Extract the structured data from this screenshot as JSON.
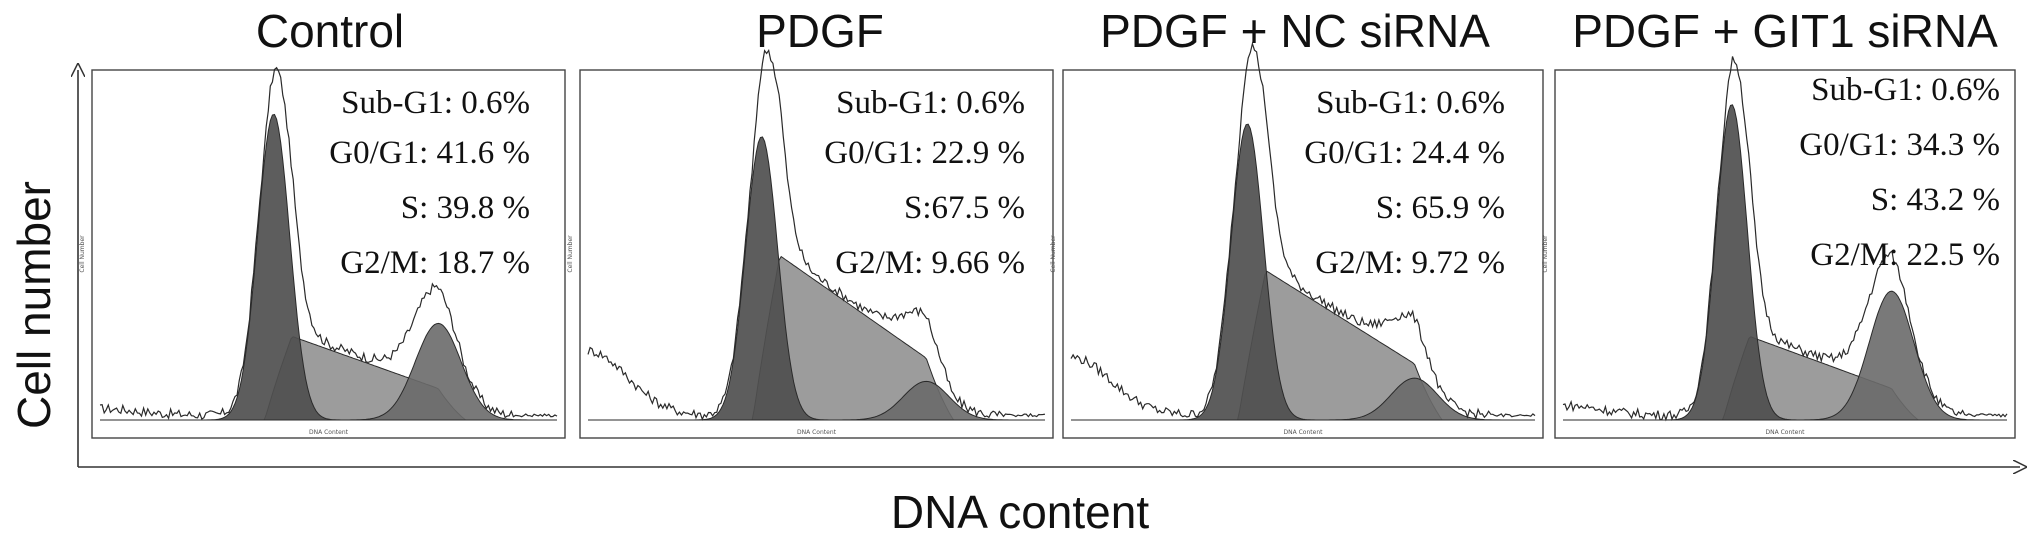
{
  "chart_data": {
    "type": "area",
    "xlabel": "DNA content",
    "ylabel": "Cell number",
    "inner_xlabel": "DNA Content",
    "inner_ylabel": "Cell Number",
    "colors": {
      "g1_fill": "#4f4f4f",
      "s_fill": "#9c9c9c",
      "g2_fill": "#6a6a6a",
      "outline": "#2a2a2a",
      "frame": "#444444"
    },
    "panels": [
      {
        "title": "Control",
        "stats": [
          {
            "label": "Sub-G1:",
            "value": "0.6%"
          },
          {
            "label": "G0/G1:",
            "value": "41.6 %"
          },
          {
            "label": "S:",
            "value": "39.8 %"
          },
          {
            "label": "G2/M:",
            "value": "18.7 %"
          }
        ],
        "g1_peak": 0.95,
        "s_height": 0.28,
        "g2_peak": 0.3,
        "sub_g1": 0.02
      },
      {
        "title": "PDGF",
        "stats": [
          {
            "label": "Sub-G1:",
            "value": "0.6%"
          },
          {
            "label": "G0/G1:",
            "value": "22.9 %"
          },
          {
            "label": "S:67.5 %",
            "value": ""
          },
          {
            "label": "G2/M:",
            "value": "9.66 %"
          }
        ],
        "g1_peak": 0.88,
        "s_height": 0.55,
        "g2_peak": 0.12,
        "sub_g1": 0.2
      },
      {
        "title": "PDGF + NC siRNA",
        "stats": [
          {
            "label": "Sub-G1:",
            "value": "0.6%"
          },
          {
            "label": "G0/G1:",
            "value": "24.4 %"
          },
          {
            "label": "S:",
            "value": "65.9 %"
          },
          {
            "label": "G2/M:",
            "value": "9.72 %"
          }
        ],
        "g1_peak": 0.92,
        "s_height": 0.5,
        "g2_peak": 0.13,
        "sub_g1": 0.18
      },
      {
        "title": "PDGF + GIT1 siRNA",
        "stats": [
          {
            "label": "Sub-G1:",
            "value": "0.6%"
          },
          {
            "label": "G0/G1:",
            "value": "34.3 %"
          },
          {
            "label": "S:",
            "value": "43.2 %"
          },
          {
            "label": "G2/M:",
            "value": "22.5 %"
          }
        ],
        "g1_peak": 0.98,
        "s_height": 0.28,
        "g2_peak": 0.4,
        "sub_g1": 0.03
      }
    ]
  }
}
